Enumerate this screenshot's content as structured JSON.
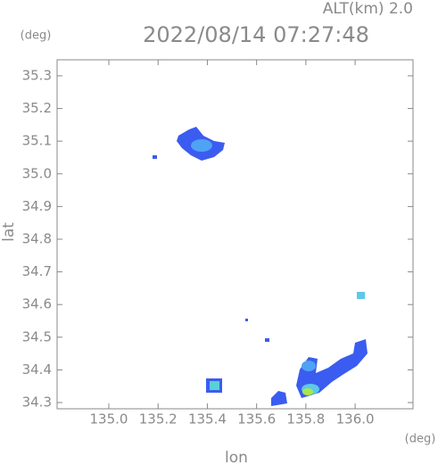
{
  "chart_data": {
    "type": "map",
    "title": "2022/08/14 07:27:48",
    "subtitle": "ALT(km) 2.0",
    "y_unit": "(deg)",
    "x_unit": "(deg)",
    "xlabel": "lon",
    "ylabel": "lat",
    "xlim": [
      134.79,
      136.235
    ],
    "ylim": [
      34.281,
      35.349
    ],
    "xticks": [
      {
        "value": 135,
        "label": "135.0"
      },
      135.2,
      135.4,
      135.6,
      135.8,
      {
        "value": 136,
        "label": "136.0"
      }
    ],
    "yticks": [
      {
        "value": 34.3,
        "label": "34.3"
      },
      34.4,
      34.5,
      34.6,
      34.7,
      34.8,
      34.9,
      {
        "value": 35,
        "label": "35.0"
      },
      35.1,
      35.2,
      35.3
    ]
  }
}
